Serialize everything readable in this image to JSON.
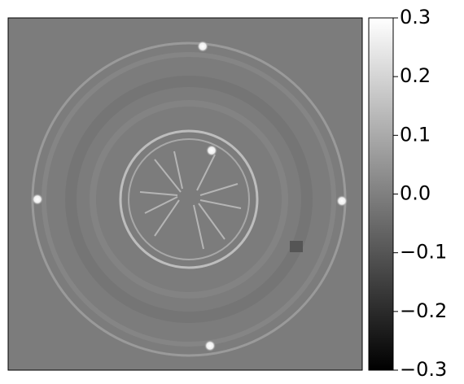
{
  "chart_data": {
    "type": "image",
    "colormap": "gray",
    "clim": [
      -0.3,
      0.3
    ],
    "cticks": [
      0.3,
      0.2,
      0.1,
      {
        "value": 0,
        "label": "0.0"
      },
      {
        "value": -0.1,
        "label": "−0.1"
      },
      {
        "value": -0.2,
        "label": "−0.2"
      },
      {
        "value": -0.3,
        "label": "−0.3"
      }
    ]
  }
}
